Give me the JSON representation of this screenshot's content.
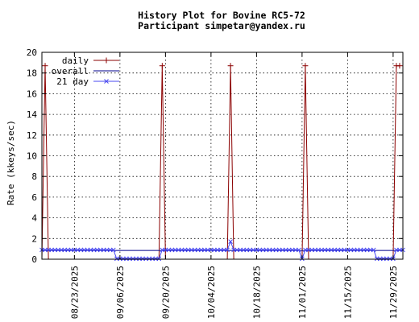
{
  "chart_data": {
    "type": "line",
    "title": "History Plot for Bovine RC5-72",
    "subtitle": "Participant simpetar@yandex.ru",
    "xlabel": "",
    "ylabel": "Rate (kkeys/sec)",
    "ylim": [
      0,
      20
    ],
    "yticks": [
      0,
      2,
      4,
      6,
      8,
      10,
      12,
      14,
      16,
      18,
      20
    ],
    "xlim": [
      "2025-08-13",
      "2025-12-02"
    ],
    "xticks": [
      "08/23/2025",
      "09/06/2025",
      "09/20/2025",
      "10/04/2025",
      "10/18/2025",
      "11/01/2025",
      "11/15/2025",
      "11/29/2025"
    ],
    "grid": true,
    "legend_position": "top-left",
    "series": [
      {
        "name": "daily",
        "color": "#8b0000",
        "marker": "plus",
        "points": [
          [
            "2025-08-13",
            0
          ],
          [
            "2025-08-14",
            18.7
          ],
          [
            "2025-08-15",
            0
          ],
          [
            "2025-08-16",
            0
          ],
          [
            "2025-09-18",
            0
          ],
          [
            "2025-09-19",
            18.7
          ],
          [
            "2025-09-20",
            0
          ],
          [
            "2025-09-21",
            0
          ],
          [
            "2025-10-09",
            0
          ],
          [
            "2025-10-10",
            18.7
          ],
          [
            "2025-10-11",
            0
          ],
          [
            "2025-10-12",
            0
          ],
          [
            "2025-11-01",
            0
          ],
          [
            "2025-11-02",
            18.7
          ],
          [
            "2025-11-03",
            0
          ],
          [
            "2025-11-04",
            0
          ],
          [
            "2025-11-29",
            0
          ],
          [
            "2025-11-30",
            18.7
          ],
          [
            "2025-12-01",
            18.7
          ]
        ]
      },
      {
        "name": "overall",
        "color": "#00008b",
        "marker": "none",
        "points": [
          [
            "2025-08-13",
            0.85
          ],
          [
            "2025-12-02",
            0.85
          ]
        ]
      },
      {
        "name": "21 day",
        "color": "#4a4af0",
        "marker": "cross",
        "points": [
          [
            "2025-08-13",
            0.9
          ],
          [
            "2025-09-04",
            0.9
          ],
          [
            "2025-09-05",
            0.05
          ],
          [
            "2025-09-18",
            0.05
          ],
          [
            "2025-09-19",
            0.9
          ],
          [
            "2025-10-09",
            0.9
          ],
          [
            "2025-10-10",
            1.7
          ],
          [
            "2025-10-11",
            0.9
          ],
          [
            "2025-10-31",
            0.9
          ],
          [
            "2025-11-01",
            0.05
          ],
          [
            "2025-11-02",
            0.9
          ],
          [
            "2025-11-23",
            0.9
          ],
          [
            "2025-11-24",
            0.05
          ],
          [
            "2025-11-29",
            0.05
          ],
          [
            "2025-11-30",
            0.9
          ],
          [
            "2025-12-02",
            0.9
          ]
        ]
      }
    ]
  }
}
